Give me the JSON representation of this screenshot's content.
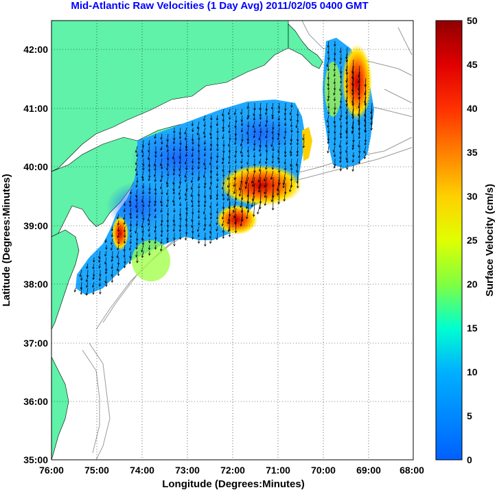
{
  "title": "Mid-Atlantic Raw Velocities (1 Day Avg) 2011/02/05 0400 GMT",
  "x_axis": {
    "label": "Longitude (Degrees:Minutes)",
    "ticks": [
      "76:00",
      "75:00",
      "74:00",
      "73:00",
      "72:00",
      "71:00",
      "70:00",
      "69:00",
      "68:00"
    ]
  },
  "y_axis": {
    "label": "Latitude (Degrees:Minutes)",
    "ticks": [
      "35:00",
      "36:00",
      "37:00",
      "38:00",
      "39:00",
      "40:00",
      "41:00",
      "42:00"
    ]
  },
  "colorbar": {
    "label": "Surface Velocity (cm/s)",
    "ticks": [
      "0",
      "5",
      "10",
      "15",
      "20",
      "25",
      "30",
      "35",
      "40",
      "45",
      "50"
    ],
    "range": [
      0,
      50
    ],
    "colormap": "jet"
  },
  "colors": {
    "land": "#5ff2a8",
    "title": "#0000ff",
    "bathymetry": "#999999",
    "grid": "#000000"
  },
  "chart_data": {
    "type": "heatmap",
    "map_extent": {
      "lon": [
        -76,
        -68
      ],
      "lat": [
        35,
        42.5
      ]
    },
    "quantity": "surface current speed (cm/s) with velocity vectors",
    "regions": [
      {
        "area": "central Mid-Atlantic shelf",
        "speed_range": [
          3,
          10
        ]
      },
      {
        "area": "shelf break near 72:00W 39:30N",
        "speed_range": [
          25,
          45
        ]
      },
      {
        "area": "shelf break near 71:30W 39:40N",
        "speed_range": [
          30,
          45
        ]
      },
      {
        "area": "Delaware Bay mouth",
        "speed_range": [
          20,
          40
        ]
      },
      {
        "area": "east of Cape Cod near 69:15W 41:20N",
        "speed_range": [
          25,
          50
        ]
      },
      {
        "area": "southern Delmarva shelf",
        "speed_range": [
          5,
          20
        ]
      }
    ]
  }
}
